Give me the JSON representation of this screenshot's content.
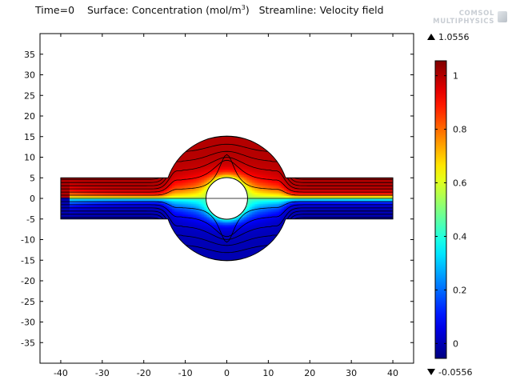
{
  "title": {
    "time_label": "Time=0",
    "surface_label": "Surface: Concentration (mol/m",
    "surface_unit_exp": "3",
    "surface_close": ")",
    "streamline_label": "Streamline: Velocity field"
  },
  "logo": {
    "line1": "COMSOL",
    "line2": "MULTIPHYSICS"
  },
  "chart_data": {
    "type": "heatmap",
    "title": "Time=0   Surface: Concentration (mol/m³)   Streamline: Velocity field",
    "xlim": [
      -45,
      45
    ],
    "ylim": [
      -40,
      40
    ],
    "x_ticks": [
      -40,
      -30,
      -20,
      -10,
      0,
      10,
      20,
      30,
      40
    ],
    "y_ticks": [
      35,
      30,
      25,
      20,
      15,
      10,
      5,
      0,
      -5,
      -10,
      -15,
      -20,
      -25,
      -30,
      -35
    ],
    "geometry": {
      "channel_x": [
        -40,
        40
      ],
      "channel_y": [
        -5,
        5
      ],
      "chamber_center": [
        0,
        0
      ],
      "chamber_radius": 15,
      "obstacle_radius": 5
    },
    "colorbar": {
      "colormap": "jet",
      "min": -0.0556,
      "max": 1.0556,
      "max_label": "1.0556",
      "min_label": "-0.0556",
      "ticks": [
        1,
        0.8,
        0.6,
        0.4,
        0.2,
        0
      ],
      "tick_labels": [
        "1",
        "0.8",
        "0.6",
        "0.4",
        "0.2",
        "0"
      ]
    },
    "streamline_count": 13
  }
}
